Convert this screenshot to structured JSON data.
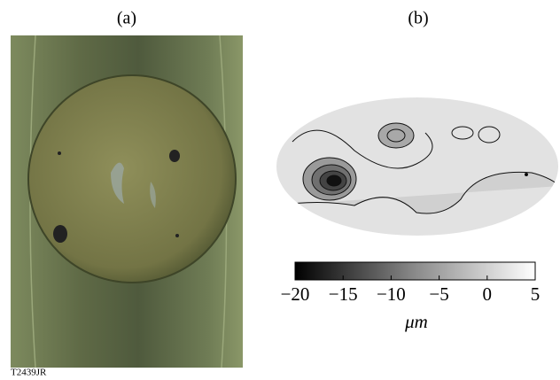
{
  "panels": [
    {
      "label": "(a)"
    },
    {
      "label": "(b)"
    }
  ],
  "colorbar": {
    "lim": [
      -20,
      5
    ],
    "ticks": [
      {
        "value": -20,
        "label": "−20"
      },
      {
        "value": -15,
        "label": "−15"
      },
      {
        "value": -10,
        "label": "−10"
      },
      {
        "value": -5,
        "label": "−5"
      },
      0,
      5
    ],
    "unit": "μm"
  },
  "footer": "T2439JR"
}
